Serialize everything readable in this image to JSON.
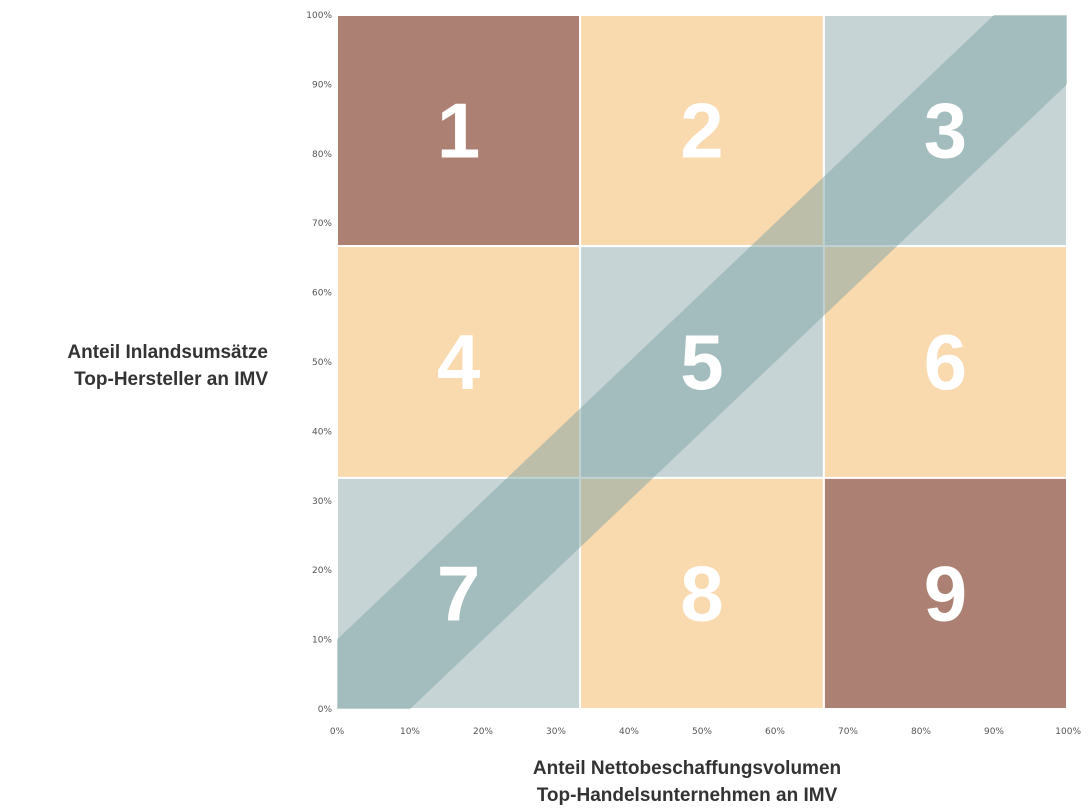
{
  "chart_data": {
    "type": "heatmap",
    "xlabel": [
      "Anteil Nettobeschaffungsvolumen",
      "Top-Handelsunternehmen an IMV"
    ],
    "ylabel": [
      "Anteil Inlandsumsätze",
      "Top-Hersteller an IMV"
    ],
    "xlim": [
      0,
      100
    ],
    "ylim": [
      0,
      100
    ],
    "x_ticks": [
      "0%",
      "10%",
      "20%",
      "30%",
      "40%",
      "50%",
      "60%",
      "70%",
      "80%",
      "90%",
      "100%"
    ],
    "y_ticks": [
      "0%",
      "10%",
      "20%",
      "30%",
      "40%",
      "50%",
      "60%",
      "70%",
      "80%",
      "90%",
      "100%"
    ],
    "colors": {
      "brown": "#ac8073",
      "peach": "#f9d9ae",
      "grey": "#c6d4d6",
      "band": "#7fa3a4",
      "text": "#ffffff"
    },
    "cells": [
      {
        "label": "1",
        "x": [
          0,
          33.3
        ],
        "y": [
          66.7,
          100
        ],
        "color": "brown"
      },
      {
        "label": "2",
        "x": [
          33.3,
          66.7
        ],
        "y": [
          66.7,
          100
        ],
        "color": "peach"
      },
      {
        "label": "3",
        "x": [
          66.7,
          100
        ],
        "y": [
          66.7,
          100
        ],
        "color": "grey"
      },
      {
        "label": "4",
        "x": [
          0,
          33.3
        ],
        "y": [
          33.3,
          66.7
        ],
        "color": "peach"
      },
      {
        "label": "5",
        "x": [
          33.3,
          66.7
        ],
        "y": [
          33.3,
          66.7
        ],
        "color": "grey"
      },
      {
        "label": "6",
        "x": [
          66.7,
          100
        ],
        "y": [
          33.3,
          66.7
        ],
        "color": "peach"
      },
      {
        "label": "7",
        "x": [
          0,
          33.3
        ],
        "y": [
          0,
          33.3
        ],
        "color": "grey"
      },
      {
        "label": "8",
        "x": [
          33.3,
          66.7
        ],
        "y": [
          0,
          33.3
        ],
        "color": "peach"
      },
      {
        "label": "9",
        "x": [
          66.7,
          100
        ],
        "y": [
          0,
          33.3
        ],
        "color": "brown"
      }
    ],
    "diagonal_band": {
      "lower_edge_x_intercept": 10,
      "upper_edge_y_intercept": 10,
      "opacity": 0.5
    }
  }
}
